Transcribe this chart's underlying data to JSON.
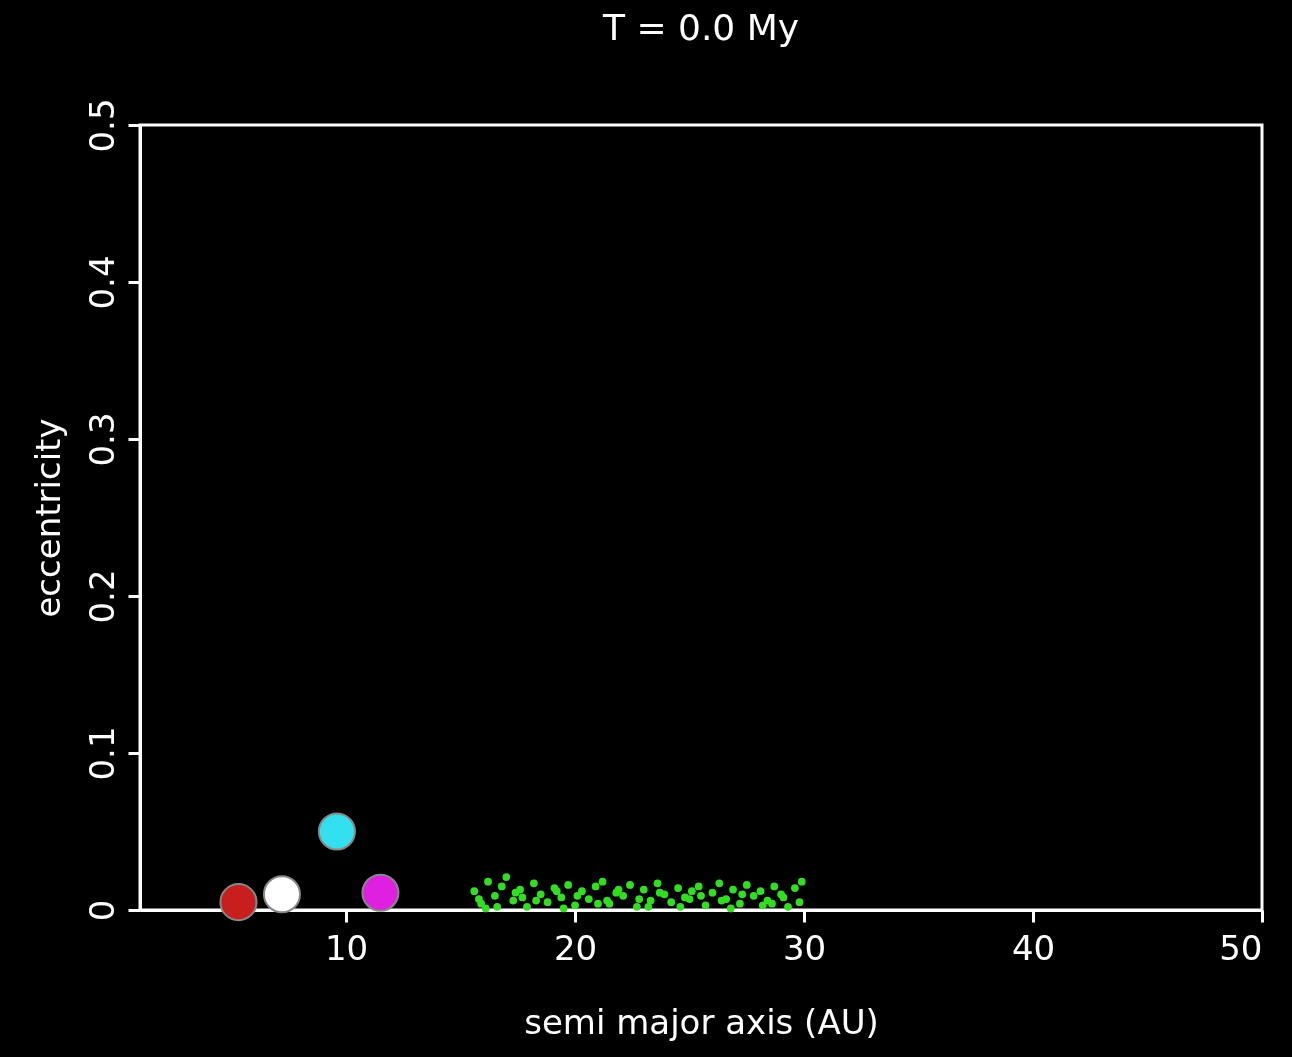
{
  "chart_data": {
    "type": "scatter",
    "title": "T =     0.0 My",
    "xlabel": "semi major axis (AU)",
    "ylabel": "eccentricity",
    "xlim": [
      1,
      50
    ],
    "ylim": [
      0,
      0.5
    ],
    "xticks": [
      10,
      20,
      30,
      40,
      50
    ],
    "yticks": [
      0,
      0.1,
      0.2,
      0.3,
      0.4,
      0.5
    ],
    "grid": false,
    "marker": "circle",
    "series": [
      {
        "color": "#c81e1e",
        "x": [
          5.3
        ],
        "values": [
          0.005
        ]
      },
      {
        "color": "#ffffff",
        "x": [
          7.2
        ],
        "values": [
          0.01
        ]
      },
      {
        "color": "#33e0f0",
        "x": [
          9.6
        ],
        "values": [
          0.05
        ]
      },
      {
        "color": "#e020e0",
        "x": [
          11.5
        ],
        "values": [
          0.011
        ]
      },
      {
        "color": "#33dd22",
        "x": [
          15.6,
          15.9,
          16.2,
          16.5,
          16.8,
          17.0,
          17.3,
          17.6,
          17.9,
          18.2,
          18.5,
          18.8,
          19.1,
          19.4,
          19.7,
          20.0,
          20.3,
          20.6,
          20.9,
          21.2,
          21.5,
          21.8,
          22.1,
          22.4,
          22.7,
          23.0,
          23.3,
          23.6,
          23.9,
          24.2,
          24.5,
          24.8,
          25.1,
          25.4,
          25.7,
          26.0,
          26.3,
          26.6,
          26.9,
          27.2,
          27.5,
          27.8,
          28.1,
          28.4,
          28.7,
          29.0,
          29.3,
          29.6,
          29.9,
          15.8,
          16.6,
          17.4,
          18.3,
          19.2,
          20.1,
          21.0,
          21.9,
          22.8,
          23.7,
          24.6,
          25.5,
          26.4,
          27.3,
          28.2,
          29.1,
          29.8,
          16.1,
          17.7,
          19.5,
          21.4,
          23.2,
          25.0,
          26.8,
          28.6
        ],
        "values": [
          0.012,
          0.004,
          0.018,
          0.009,
          0.015,
          0.021,
          0.006,
          0.013,
          0.002,
          0.017,
          0.01,
          0.005,
          0.014,
          0.008,
          0.016,
          0.003,
          0.012,
          0.007,
          0.015,
          0.018,
          0.004,
          0.011,
          0.009,
          0.016,
          0.002,
          0.013,
          0.006,
          0.017,
          0.01,
          0.005,
          0.014,
          0.008,
          0.012,
          0.015,
          0.003,
          0.011,
          0.017,
          0.007,
          0.013,
          0.004,
          0.016,
          0.009,
          0.012,
          0.006,
          0.015,
          0.01,
          0.002,
          0.014,
          0.018,
          0.007,
          0.002,
          0.011,
          0.006,
          0.012,
          0.009,
          0.004,
          0.013,
          0.007,
          0.011,
          0.002,
          0.009,
          0.006,
          0.01,
          0.003,
          0.008,
          0.005,
          0.001,
          0.008,
          0.001,
          0.006,
          0.002,
          0.007,
          0.001,
          0.004
        ]
      }
    ]
  }
}
